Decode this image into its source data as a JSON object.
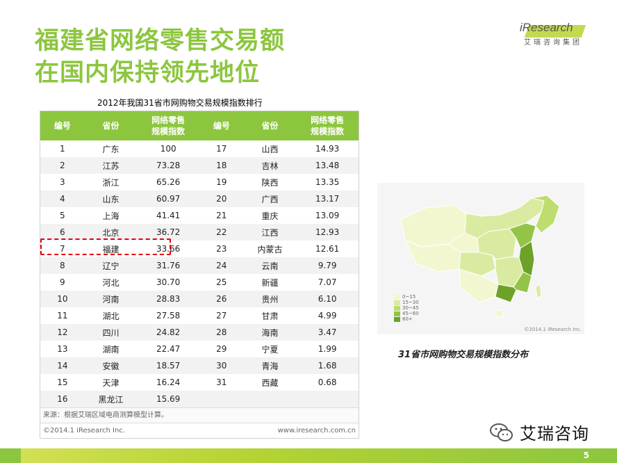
{
  "title_line1": "福建省网络零售交易额",
  "title_line2": "在国内保持领先地位",
  "logo": {
    "text": "iResearch",
    "cn": "艾瑞咨询集团"
  },
  "table": {
    "caption": "2012年我国31省市网购物交易规模指数排行",
    "headers": [
      "编号",
      "省份",
      "网络零售\n规模指数",
      "编号",
      "省份",
      "网络零售\n规模指数"
    ],
    "rows": [
      [
        "1",
        "广东",
        "100",
        "17",
        "山西",
        "14.93"
      ],
      [
        "2",
        "江苏",
        "73.28",
        "18",
        "吉林",
        "13.48"
      ],
      [
        "3",
        "浙江",
        "65.26",
        "19",
        "陕西",
        "13.35"
      ],
      [
        "4",
        "山东",
        "60.97",
        "20",
        "广西",
        "13.17"
      ],
      [
        "5",
        "上海",
        "41.41",
        "21",
        "重庆",
        "13.09"
      ],
      [
        "6",
        "北京",
        "36.72",
        "22",
        "江西",
        "12.93"
      ],
      [
        "7",
        "福建",
        "33.66",
        "23",
        "内蒙古",
        "12.61"
      ],
      [
        "8",
        "辽宁",
        "31.76",
        "24",
        "云南",
        "9.79"
      ],
      [
        "9",
        "河北",
        "30.70",
        "25",
        "新疆",
        "7.07"
      ],
      [
        "10",
        "河南",
        "28.83",
        "26",
        "贵州",
        "6.10"
      ],
      [
        "11",
        "湖北",
        "27.58",
        "27",
        "甘肃",
        "4.99"
      ],
      [
        "12",
        "四川",
        "24.82",
        "28",
        "海南",
        "3.47"
      ],
      [
        "13",
        "湖南",
        "22.47",
        "29",
        "宁夏",
        "1.99"
      ],
      [
        "14",
        "安徽",
        "18.57",
        "30",
        "青海",
        "1.68"
      ],
      [
        "15",
        "天津",
        "16.24",
        "31",
        "西藏",
        "0.68"
      ],
      [
        "16",
        "黑龙江",
        "15.69",
        "",
        "",
        ""
      ]
    ],
    "source": "来源：根据艾瑞区域电商测算模型计算。",
    "copyright": "©2014.1 iResearch Inc.",
    "website": "www.iresearch.com.cn"
  },
  "map": {
    "legend": [
      {
        "label": "0~15",
        "color": "#f2f7d0"
      },
      {
        "label": "15~30",
        "color": "#d9eba0"
      },
      {
        "label": "30~45",
        "color": "#bedd6e"
      },
      {
        "label": "45~60",
        "color": "#93c447"
      },
      {
        "label": "60+",
        "color": "#6ea12a"
      }
    ],
    "copyright": "©2014.1 iResearch Inc.",
    "caption": "31省市网购物交易规模指数分布"
  },
  "wechat_label": "艾瑞咨询",
  "page_number": "5"
}
